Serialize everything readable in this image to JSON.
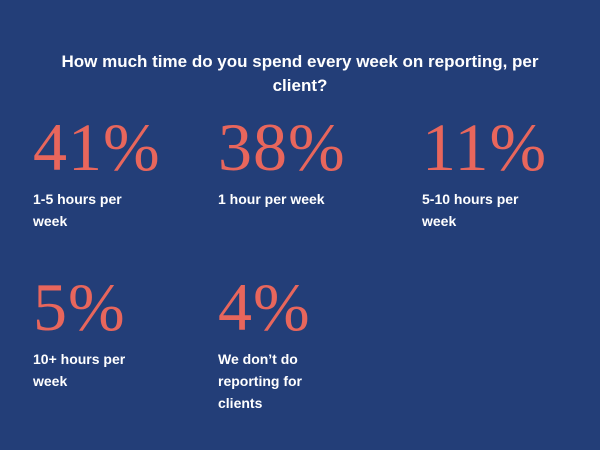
{
  "title": "How much time do you spend every week on reporting, per client?",
  "stats": [
    {
      "value": "41%",
      "label": "1-5 hours per week"
    },
    {
      "value": "38%",
      "label": "1 hour per week"
    },
    {
      "value": "11%",
      "label": "5-10 hours per week"
    },
    {
      "value": "5%",
      "label": "10+ hours per week"
    },
    {
      "value": "4%",
      "label": "We don’t do reporting for clients"
    }
  ]
}
